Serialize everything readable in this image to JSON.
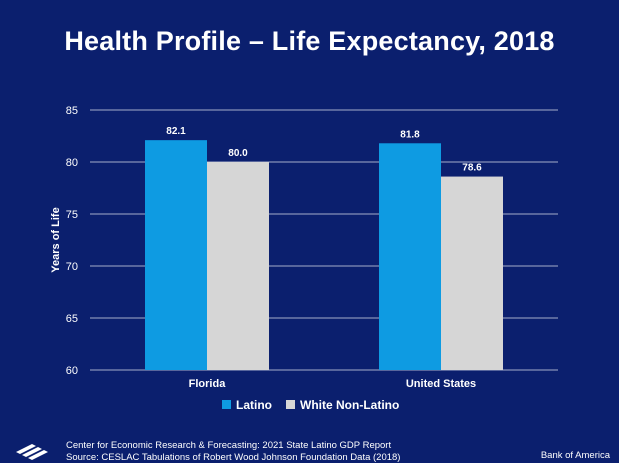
{
  "slide": {
    "title": "Health Profile – Life Expectancy, 2018",
    "footer_line1": "Center for Economic Research & Forecasting: 2021 State Latino GDP Report",
    "footer_line2": "Source: CESLAC Tabulations of Robert Wood Johnson Foundation Data (2018)",
    "brand": "Bank of America",
    "logo_icon": "bank-of-america-flag-icon"
  },
  "colors": {
    "background": "#0b1f6e",
    "latino": "#0e9be2",
    "white_non_latino": "#d6d6d6",
    "text": "#ffffff",
    "gridline": "#ffffff"
  },
  "chart_data": {
    "type": "bar",
    "title": "",
    "xlabel": "",
    "ylabel": "Years of Life",
    "ylim": [
      60,
      85
    ],
    "yticks": [
      "60",
      "65",
      "70",
      "75",
      "80",
      "85"
    ],
    "categories": [
      "Florida",
      "United States"
    ],
    "series": [
      {
        "name": "Latino",
        "values": [
          82.1,
          81.8
        ],
        "labels": [
          "82.1",
          "81.8"
        ],
        "color": "#0e9be2"
      },
      {
        "name": "White Non-Latino",
        "values": [
          80.0,
          78.6
        ],
        "labels": [
          "80.0",
          "78.6"
        ],
        "color": "#d6d6d6"
      }
    ],
    "grid": true,
    "legend_position": "bottom-center"
  }
}
